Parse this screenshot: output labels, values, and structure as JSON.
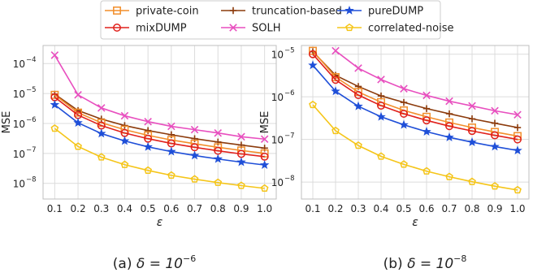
{
  "legend": {
    "entries": [
      {
        "name": "private-coin",
        "color": "#f28e2b",
        "marker": "square"
      },
      {
        "name": "truncation-based",
        "color": "#8c3b0c",
        "marker": "plus"
      },
      {
        "name": "pureDUMP",
        "color": "#1f4fd8",
        "marker": "star"
      },
      {
        "name": "mixDUMP",
        "color": "#e0201b",
        "marker": "circle"
      },
      {
        "name": "SOLH",
        "color": "#e84fbf",
        "marker": "x"
      },
      {
        "name": "correlated-noise",
        "color": "#f5c518",
        "marker": "pentagon"
      }
    ],
    "placement": "top-center"
  },
  "chart_data": [
    {
      "type": "line",
      "panel_label": "(a)",
      "caption_param": "δ = 10",
      "caption_exp": "−6",
      "xlabel": "ε",
      "ylabel": "MSE",
      "yscale": "log",
      "grid": true,
      "xlim": [
        0.05,
        1.05
      ],
      "ylim": [
        3e-09,
        0.0004
      ],
      "x": [
        0.1,
        0.2,
        0.3,
        0.4,
        0.5,
        0.6,
        0.7,
        0.8,
        0.9,
        1.0
      ],
      "x_ticks": [
        "0.1",
        "0.2",
        "0.3",
        "0.4",
        "0.5",
        "0.6",
        "0.7",
        "0.8",
        "0.9",
        "1.0"
      ],
      "y_ticks": [
        {
          "value": 1e-08,
          "base": "10",
          "exp": "−8"
        },
        {
          "value": 1e-07,
          "base": "10",
          "exp": "−7"
        },
        {
          "value": 1e-06,
          "base": "10",
          "exp": "−6"
        },
        {
          "value": 1e-05,
          "base": "10",
          "exp": "−5"
        },
        {
          "value": 0.0001,
          "base": "10",
          "exp": "−4"
        }
      ],
      "series": [
        {
          "name": "SOLH",
          "values": [
            0.00019,
            9e-06,
            3.3e-06,
            1.8e-06,
            1.15e-06,
            8e-07,
            6.2e-07,
            4.8e-07,
            3.6e-07,
            3e-07
          ]
        },
        {
          "name": "truncation-based",
          "values": [
            9.5e-06,
            2.7e-06,
            1.4e-06,
            8.5e-07,
            5.8e-07,
            4.2e-07,
            3.1e-07,
            2.4e-07,
            1.9e-07,
            1.5e-07
          ]
        },
        {
          "name": "private-coin",
          "values": [
            9e-06,
            2.3e-06,
            1.05e-06,
            6.2e-07,
            4e-07,
            2.8e-07,
            2.1e-07,
            1.6e-07,
            1.25e-07,
            1e-07
          ]
        },
        {
          "name": "mixDUMP",
          "values": [
            7.5e-06,
            1.9e-06,
            8.5e-07,
            4.8e-07,
            3.1e-07,
            2.15e-07,
            1.6e-07,
            1.22e-07,
            9.6e-08,
            7.8e-08
          ]
        },
        {
          "name": "pureDUMP",
          "values": [
            4.2e-06,
            1.05e-06,
            4.6e-07,
            2.6e-07,
            1.65e-07,
            1.15e-07,
            8.5e-08,
            6.5e-08,
            5.1e-08,
            4.1e-08
          ]
        },
        {
          "name": "correlated-noise",
          "values": [
            6.8e-07,
            1.7e-07,
            7.5e-08,
            4.2e-08,
            2.7e-08,
            1.85e-08,
            1.38e-08,
            1.06e-08,
            8.4e-09,
            6.8e-09
          ]
        }
      ]
    },
    {
      "type": "line",
      "panel_label": "(b)",
      "caption_param": "δ = 10",
      "caption_exp": "−8",
      "xlabel": "ε",
      "ylabel": "MSE",
      "yscale": "log",
      "grid": true,
      "xlim": [
        0.05,
        1.05
      ],
      "ylim": [
        4e-09,
        1.6e-05
      ],
      "x": [
        0.1,
        0.2,
        0.3,
        0.4,
        0.5,
        0.6,
        0.7,
        0.8,
        0.9,
        1.0
      ],
      "x_ticks": [
        "0.1",
        "0.2",
        "0.3",
        "0.4",
        "0.5",
        "0.6",
        "0.7",
        "0.8",
        "0.9",
        "1.0"
      ],
      "y_ticks": [
        {
          "value": 1e-08,
          "base": "10",
          "exp": "−8"
        },
        {
          "value": 1e-07,
          "base": "10",
          "exp": "−7"
        },
        {
          "value": 1e-06,
          "base": "10",
          "exp": "−6"
        },
        {
          "value": 1e-05,
          "base": "10",
          "exp": "−5"
        }
      ],
      "series": [
        {
          "name": "SOLH",
          "values": [
            null,
            1.2e-05,
            4.7e-06,
            2.55e-06,
            1.55e-06,
            1.08e-06,
            7.9e-07,
            6.1e-07,
            4.7e-07,
            3.8e-07
          ]
        },
        {
          "name": "truncation-based",
          "values": [
            1.15e-05,
            3.2e-06,
            1.75e-06,
            1.05e-06,
            7.4e-07,
            5.3e-07,
            4e-07,
            3.05e-07,
            2.4e-07,
            1.9e-07
          ]
        },
        {
          "name": "private-coin",
          "values": [
            1.2e-05,
            2.9e-06,
            1.3e-06,
            7.5e-07,
            4.8e-07,
            3.4e-07,
            2.5e-07,
            1.9e-07,
            1.5e-07,
            1.2e-07
          ]
        },
        {
          "name": "mixDUMP",
          "values": [
            1e-05,
            2.5e-06,
            1.1e-06,
            6.2e-07,
            4e-07,
            2.8e-07,
            2.05e-07,
            1.58e-07,
            1.25e-07,
            1e-07
          ]
        },
        {
          "name": "pureDUMP",
          "values": [
            5.5e-06,
            1.35e-06,
            6e-07,
            3.4e-07,
            2.2e-07,
            1.52e-07,
            1.12e-07,
            8.6e-08,
            6.8e-08,
            5.5e-08
          ]
        },
        {
          "name": "correlated-noise",
          "values": [
            6.5e-07,
            1.6e-07,
            7.2e-08,
            4e-08,
            2.6e-08,
            1.8e-08,
            1.33e-08,
            1.02e-08,
            8e-09,
            6.5e-09
          ]
        }
      ]
    }
  ]
}
